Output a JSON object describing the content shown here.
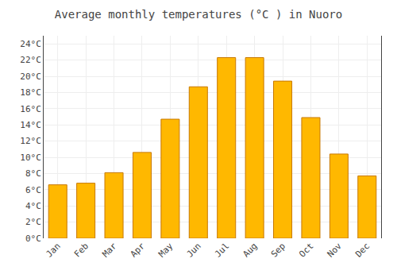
{
  "chart_data": {
    "type": "bar",
    "title": "Average monthly temperatures (°C ) in Nuoro",
    "categories": [
      "Jan",
      "Feb",
      "Mar",
      "Apr",
      "May",
      "Jun",
      "Jul",
      "Aug",
      "Sep",
      "Oct",
      "Nov",
      "Dec"
    ],
    "values": [
      6.6,
      6.8,
      8.1,
      10.6,
      14.7,
      18.7,
      22.3,
      22.3,
      19.4,
      14.9,
      10.4,
      7.7
    ],
    "color": "#FFB800",
    "ylim": [
      0,
      25
    ],
    "yticks": [
      {
        "value": 0,
        "label": "0°C"
      },
      {
        "value": 2,
        "label": "2°C"
      },
      {
        "value": 4,
        "label": "4°C"
      },
      {
        "value": 6,
        "label": "6°C"
      },
      {
        "value": 8,
        "label": "8°C"
      },
      {
        "value": 10,
        "label": "10°C"
      },
      {
        "value": 12,
        "label": "12°C"
      },
      {
        "value": 14,
        "label": "14°C"
      },
      {
        "value": 16,
        "label": "16°C"
      },
      {
        "value": 18,
        "label": "18°C"
      },
      {
        "value": 20,
        "label": "20°C"
      },
      {
        "value": 22,
        "label": "22°C"
      },
      {
        "value": 24,
        "label": "24°C"
      }
    ],
    "grid": true
  }
}
